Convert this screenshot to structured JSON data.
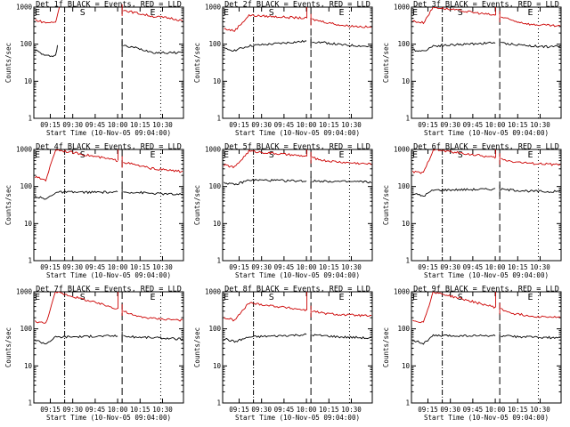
{
  "chart_data": [
    {
      "type": "line",
      "title": "Det 1f BLACK = Events, RED = LLD",
      "xlabel": "Start Time (10-Nov-05 09:04:00)",
      "ylabel": "Counts/sec",
      "xticks": [
        "09:15",
        "09:30",
        "09:45",
        "10:00",
        "10:15",
        "10:30"
      ],
      "yticks": [
        "1",
        "10",
        "100",
        "1000"
      ],
      "yscale": "log",
      "ylim": [
        1,
        1000
      ],
      "xlim": [
        "09:04",
        "10:44"
      ],
      "markers": [
        "E",
        "S",
        "E"
      ],
      "series": [
        {
          "color": "#000000",
          "values": [
            [
              9.08,
              70
            ],
            [
              9.2,
              48
            ],
            [
              9.31,
              50
            ],
            [
              9.33,
              90
            ],
            [
              10.0,
              95
            ],
            [
              10.2,
              80
            ],
            [
              10.4,
              60
            ],
            [
              10.6,
              58
            ],
            [
              10.74,
              62
            ]
          ]
        },
        {
          "color": "#cc0000",
          "values": [
            [
              9.08,
              450
            ],
            [
              9.2,
              380
            ],
            [
              9.31,
              390
            ],
            [
              9.35,
              1000
            ],
            [
              10.0,
              900
            ],
            [
              10.2,
              700
            ],
            [
              10.4,
              560
            ],
            [
              10.6,
              500
            ],
            [
              10.74,
              420
            ]
          ]
        }
      ]
    },
    {
      "type": "line",
      "title": "Det 2f BLACK = Events, RED = LLD",
      "xlabel": "Start Time (10-Nov-05 09:04:00)",
      "ylabel": "Counts/sec",
      "xticks": [
        "09:15",
        "09:30",
        "09:45",
        "10:00",
        "10:15",
        "10:30"
      ],
      "yticks": [
        "1",
        "10",
        "100",
        "1000"
      ],
      "yscale": "log",
      "ylim": [
        1,
        1000
      ],
      "xlim": [
        "09:04",
        "10:44"
      ],
      "markers": [
        "E",
        "S",
        "E"
      ],
      "series": [
        {
          "color": "#000000",
          "values": [
            [
              9.08,
              75
            ],
            [
              9.2,
              68
            ],
            [
              9.36,
              90
            ],
            [
              10.0,
              120
            ],
            [
              10.2,
              110
            ],
            [
              10.4,
              95
            ],
            [
              10.6,
              90
            ],
            [
              10.74,
              85
            ]
          ]
        },
        {
          "color": "#cc0000",
          "values": [
            [
              9.08,
              260
            ],
            [
              9.2,
              230
            ],
            [
              9.36,
              600
            ],
            [
              10.0,
              500
            ],
            [
              10.2,
              400
            ],
            [
              10.4,
              320
            ],
            [
              10.6,
              300
            ],
            [
              10.74,
              280
            ]
          ]
        }
      ]
    },
    {
      "type": "line",
      "title": "Det 3f BLACK = Events, RED = LLD",
      "xlabel": "Start Time (10-Nov-05 09:04:00)",
      "ylabel": "Counts/sec",
      "xticks": [
        "09:15",
        "09:30",
        "09:45",
        "10:00",
        "10:15",
        "10:30"
      ],
      "yticks": [
        "1",
        "10",
        "100",
        "1000"
      ],
      "yscale": "log",
      "ylim": [
        1,
        1000
      ],
      "xlim": [
        "09:04",
        "10:44"
      ],
      "markers": [
        "E",
        "S",
        "E"
      ],
      "series": [
        {
          "color": "#000000",
          "values": [
            [
              9.08,
              70
            ],
            [
              9.2,
              65
            ],
            [
              9.31,
              90
            ],
            [
              10.0,
              110
            ],
            [
              10.2,
              100
            ],
            [
              10.4,
              90
            ],
            [
              10.6,
              85
            ],
            [
              10.74,
              88
            ]
          ]
        },
        {
          "color": "#cc0000",
          "values": [
            [
              9.08,
              420
            ],
            [
              9.2,
              380
            ],
            [
              9.31,
              1000
            ],
            [
              10.0,
              600
            ],
            [
              10.2,
              430
            ],
            [
              10.4,
              340
            ],
            [
              10.6,
              320
            ],
            [
              10.74,
              300
            ]
          ]
        }
      ]
    },
    {
      "type": "line",
      "title": "Det 4f BLACK = Events, RED = LLD",
      "xlabel": "Start Time (10-Nov-05 09:04:00)",
      "ylabel": "Counts/sec",
      "xticks": [
        "09:15",
        "09:30",
        "09:45",
        "10:00",
        "10:15",
        "10:30"
      ],
      "yticks": [
        "1",
        "10",
        "100",
        "1000"
      ],
      "yscale": "log",
      "ylim": [
        1,
        1000
      ],
      "xlim": [
        "09:04",
        "10:44"
      ],
      "markers": [
        "E",
        "S",
        "E"
      ],
      "series": [
        {
          "color": "#000000",
          "values": [
            [
              9.08,
              55
            ],
            [
              9.2,
              45
            ],
            [
              9.31,
              70
            ],
            [
              10.0,
              70
            ],
            [
              10.2,
              70
            ],
            [
              10.4,
              65
            ],
            [
              10.6,
              62
            ],
            [
              10.74,
              60
            ]
          ]
        },
        {
          "color": "#cc0000",
          "values": [
            [
              9.08,
              180
            ],
            [
              9.2,
              150
            ],
            [
              9.31,
              1000
            ],
            [
              10.0,
              500
            ],
            [
              10.2,
              380
            ],
            [
              10.4,
              300
            ],
            [
              10.6,
              270
            ],
            [
              10.74,
              250
            ]
          ]
        }
      ]
    },
    {
      "type": "line",
      "title": "Det 5f BLACK = Events, RED = LLD",
      "xlabel": "Start Time (10-Nov-05 09:04:00)",
      "ylabel": "Counts/sec",
      "xticks": [
        "09:15",
        "09:30",
        "09:45",
        "10:00",
        "10:15",
        "10:30"
      ],
      "yticks": [
        "1",
        "10",
        "100",
        "1000"
      ],
      "yscale": "log",
      "ylim": [
        1,
        1000
      ],
      "xlim": [
        "09:04",
        "10:44"
      ],
      "markers": [
        "E",
        "S",
        "E"
      ],
      "series": [
        {
          "color": "#000000",
          "values": [
            [
              9.08,
              130
            ],
            [
              9.2,
              110
            ],
            [
              9.36,
              150
            ],
            [
              10.0,
              140
            ],
            [
              10.2,
              140
            ],
            [
              10.4,
              135
            ],
            [
              10.6,
              135
            ],
            [
              10.74,
              130
            ]
          ]
        },
        {
          "color": "#cc0000",
          "values": [
            [
              9.08,
              380
            ],
            [
              9.2,
              330
            ],
            [
              9.36,
              900
            ],
            [
              10.0,
              650
            ],
            [
              10.2,
              500
            ],
            [
              10.4,
              450
            ],
            [
              10.6,
              420
            ],
            [
              10.74,
              400
            ]
          ]
        }
      ]
    },
    {
      "type": "line",
      "title": "Det 6f BLACK = Events, RED = LLD",
      "xlabel": "Start Time (10-Nov-05 09:04:00)",
      "ylabel": "Counts/sec",
      "xticks": [
        "09:15",
        "09:30",
        "09:45",
        "10:00",
        "10:15",
        "10:30"
      ],
      "yticks": [
        "1",
        "10",
        "100",
        "1000"
      ],
      "yscale": "log",
      "ylim": [
        1,
        1000
      ],
      "xlim": [
        "09:04",
        "10:44"
      ],
      "markers": [
        "E",
        "S",
        "E"
      ],
      "series": [
        {
          "color": "#000000",
          "values": [
            [
              9.08,
              65
            ],
            [
              9.2,
              55
            ],
            [
              9.31,
              80
            ],
            [
              10.0,
              85
            ],
            [
              10.2,
              80
            ],
            [
              10.4,
              75
            ],
            [
              10.6,
              72
            ],
            [
              10.74,
              75
            ]
          ]
        },
        {
          "color": "#cc0000",
          "values": [
            [
              9.08,
              250
            ],
            [
              9.2,
              230
            ],
            [
              9.31,
              1000
            ],
            [
              10.0,
              600
            ],
            [
              10.2,
              470
            ],
            [
              10.4,
              420
            ],
            [
              10.6,
              400
            ],
            [
              10.74,
              380
            ]
          ]
        }
      ]
    },
    {
      "type": "line",
      "title": "Det 7f BLACK = Events, RED = LLD",
      "xlabel": "Start Time (10-Nov-05 09:04:00)",
      "ylabel": "Counts/sec",
      "xticks": [
        "09:15",
        "09:30",
        "09:45",
        "10:00",
        "10:15",
        "10:30"
      ],
      "yticks": [
        "1",
        "10",
        "100",
        "1000"
      ],
      "yscale": "log",
      "ylim": [
        1,
        1000
      ],
      "xlim": [
        "09:04",
        "10:44"
      ],
      "markers": [
        "E",
        "S",
        "E"
      ],
      "series": [
        {
          "color": "#000000",
          "values": [
            [
              9.08,
              50
            ],
            [
              9.2,
              40
            ],
            [
              9.31,
              60
            ],
            [
              10.0,
              65
            ],
            [
              10.2,
              60
            ],
            [
              10.4,
              58
            ],
            [
              10.6,
              55
            ],
            [
              10.74,
              52
            ]
          ]
        },
        {
          "color": "#cc0000",
          "values": [
            [
              9.08,
              160
            ],
            [
              9.2,
              140
            ],
            [
              9.31,
              1000
            ],
            [
              10.0,
              350
            ],
            [
              10.2,
              220
            ],
            [
              10.4,
              190
            ],
            [
              10.6,
              180
            ],
            [
              10.74,
              170
            ]
          ]
        }
      ]
    },
    {
      "type": "line",
      "title": "Det 8f BLACK = Events, RED = LLD",
      "xlabel": "Start Time (10-Nov-05 09:04:00)",
      "ylabel": "Counts/sec",
      "xticks": [
        "09:15",
        "09:30",
        "09:45",
        "10:00",
        "10:15",
        "10:30"
      ],
      "yticks": [
        "1",
        "10",
        "100",
        "1000"
      ],
      "yscale": "log",
      "ylim": [
        1,
        1000
      ],
      "xlim": [
        "09:04",
        "10:44"
      ],
      "markers": [
        "E",
        "S",
        "E"
      ],
      "series": [
        {
          "color": "#000000",
          "values": [
            [
              9.08,
              55
            ],
            [
              9.2,
              45
            ],
            [
              9.36,
              60
            ],
            [
              10.0,
              70
            ],
            [
              10.2,
              65
            ],
            [
              10.4,
              60
            ],
            [
              10.6,
              58
            ],
            [
              10.74,
              55
            ]
          ]
        },
        {
          "color": "#cc0000",
          "values": [
            [
              9.08,
              200
            ],
            [
              9.2,
              170
            ],
            [
              9.36,
              500
            ],
            [
              10.0,
              320
            ],
            [
              10.2,
              260
            ],
            [
              10.4,
              240
            ],
            [
              10.6,
              230
            ],
            [
              10.74,
              220
            ]
          ]
        }
      ]
    },
    {
      "type": "line",
      "title": "Det 9f BLACK = Events, RED = LLD",
      "xlabel": "Start Time (10-Nov-05 09:04:00)",
      "ylabel": "Counts/sec",
      "xticks": [
        "09:15",
        "09:30",
        "09:45",
        "10:00",
        "10:15",
        "10:30"
      ],
      "yticks": [
        "1",
        "10",
        "100",
        "1000"
      ],
      "yscale": "log",
      "ylim": [
        1,
        1000
      ],
      "xlim": [
        "09:04",
        "10:44"
      ],
      "markers": [
        "E",
        "S",
        "E"
      ],
      "series": [
        {
          "color": "#000000",
          "values": [
            [
              9.08,
              50
            ],
            [
              9.2,
              40
            ],
            [
              9.31,
              65
            ],
            [
              10.0,
              65
            ],
            [
              10.2,
              62
            ],
            [
              10.4,
              60
            ],
            [
              10.6,
              58
            ],
            [
              10.74,
              55
            ]
          ]
        },
        {
          "color": "#cc0000",
          "values": [
            [
              9.08,
              170
            ],
            [
              9.2,
              150
            ],
            [
              9.31,
              1000
            ],
            [
              10.0,
              380
            ],
            [
              10.2,
              260
            ],
            [
              10.4,
              220
            ],
            [
              10.6,
              210
            ],
            [
              10.74,
              200
            ]
          ]
        }
      ]
    }
  ]
}
